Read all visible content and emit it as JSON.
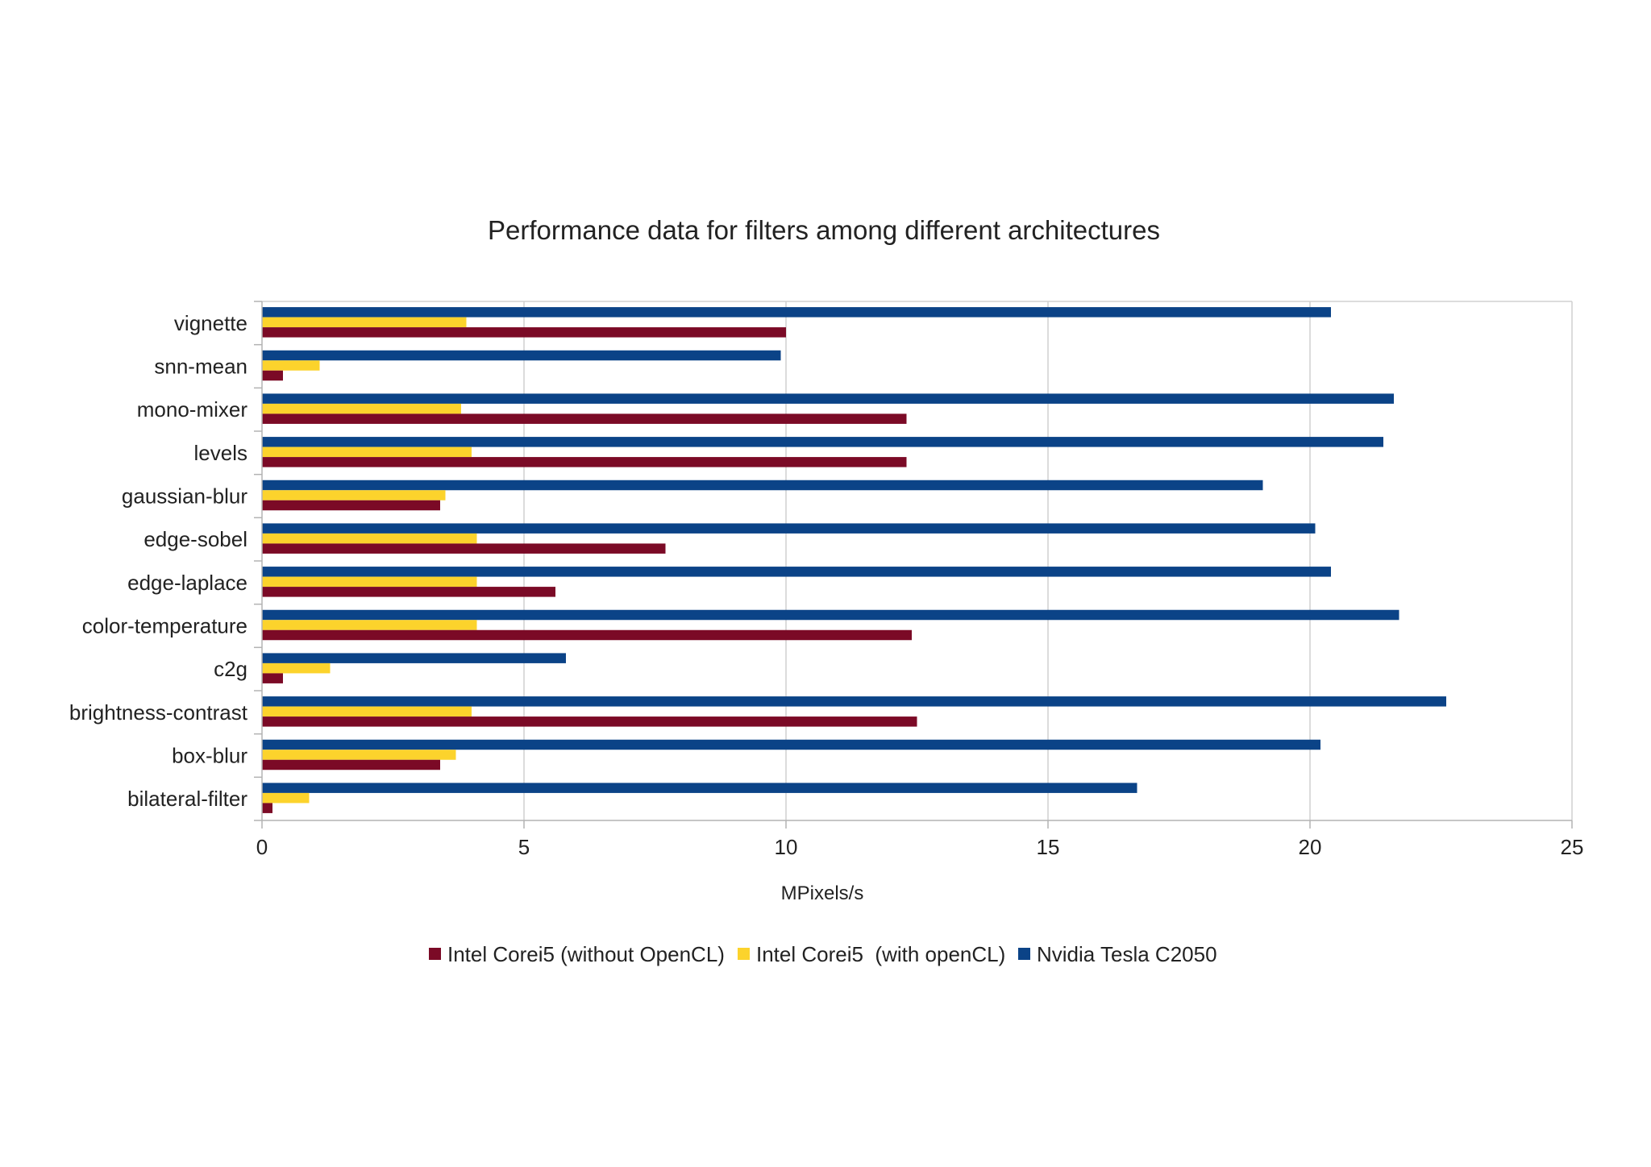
{
  "chart_data": {
    "type": "bar",
    "orientation": "horizontal",
    "title": "Performance data for filters among different architectures",
    "xlabel": "MPixels/s",
    "ylabel": "",
    "xlim": [
      0,
      25
    ],
    "xticks": [
      0,
      5,
      10,
      15,
      20,
      25
    ],
    "grid": true,
    "legend_position": "bottom",
    "categories": [
      "vignette",
      "snn-mean",
      "mono-mixer",
      "levels",
      "gaussian-blur",
      "edge-sobel",
      "edge-laplace",
      "color-temperature",
      "c2g",
      "brightness-contrast",
      "box-blur",
      "bilateral-filter"
    ],
    "series": [
      {
        "name": "Intel Corei5 (without OpenCL)",
        "color": "#7b0a26",
        "values": [
          10.0,
          0.4,
          12.3,
          12.3,
          3.4,
          7.7,
          5.6,
          12.4,
          0.4,
          12.5,
          3.4,
          0.2
        ]
      },
      {
        "name": "Intel Corei5  (with openCL)",
        "color": "#fcd32c",
        "values": [
          3.9,
          1.1,
          3.8,
          4.0,
          3.5,
          4.1,
          4.1,
          4.1,
          1.3,
          4.0,
          3.7,
          0.9
        ]
      },
      {
        "name": "Nvidia Tesla C2050",
        "color": "#0b4387",
        "values": [
          20.4,
          9.9,
          21.6,
          21.4,
          19.1,
          20.1,
          20.4,
          21.7,
          5.8,
          22.6,
          20.2,
          16.7
        ]
      }
    ]
  }
}
